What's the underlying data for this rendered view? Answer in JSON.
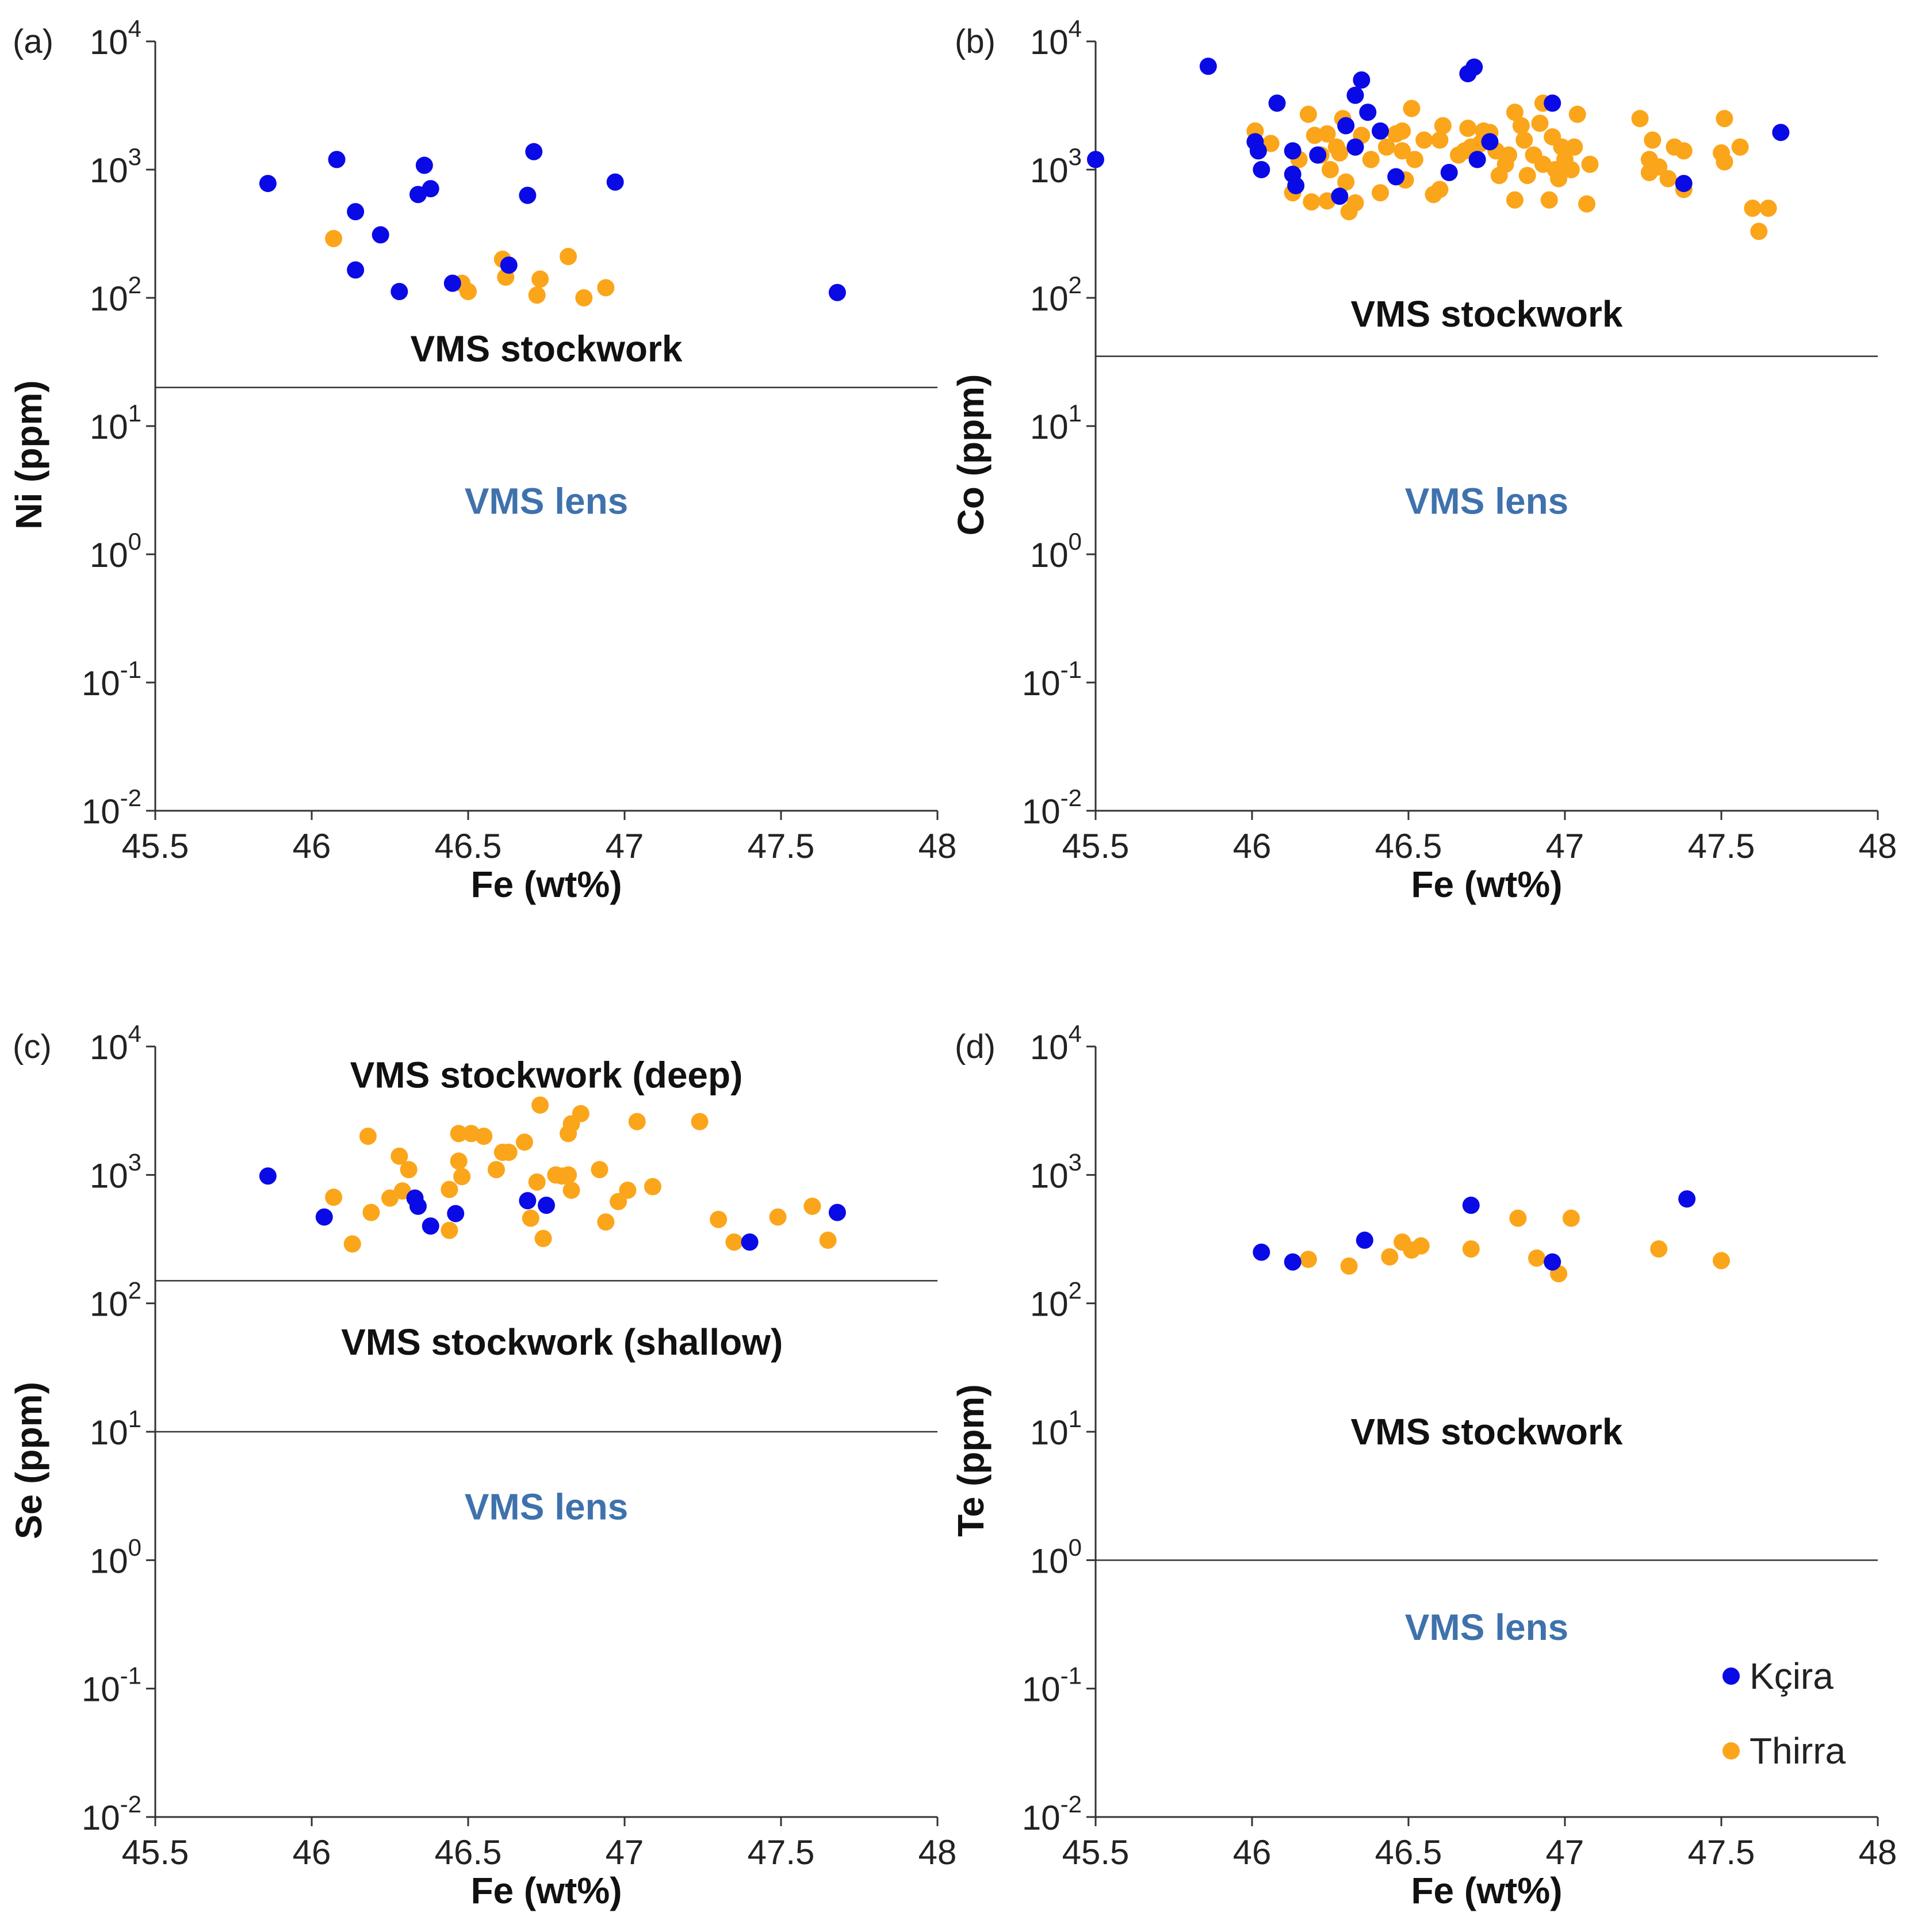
{
  "colors": {
    "kcira": "#0a0ae6",
    "thirra": "#fba51a",
    "lens_text": "#3f72ac",
    "axis": "#333333"
  },
  "legend": {
    "items": [
      {
        "label": "Kçira",
        "color": "#0a0ae6"
      },
      {
        "label": "Thirra",
        "color": "#fba51a"
      }
    ]
  },
  "chart_data": [
    {
      "type": "scatter",
      "panel_label": "(a)",
      "xlabel": "Fe (wt%)",
      "ylabel": "Ni (ppm)",
      "xlim": [
        45.5,
        48
      ],
      "ylim": [
        0.01,
        10000
      ],
      "yscale": "log",
      "x_ticks": [
        "45.5",
        "46",
        "46.5",
        "47",
        "47.5",
        "48"
      ],
      "y_ticks": [
        {
          "base": "10",
          "exp": "-2"
        },
        {
          "base": "10",
          "exp": "-1"
        },
        {
          "base": "10",
          "exp": "0"
        },
        {
          "base": "10",
          "exp": "1"
        },
        {
          "base": "10",
          "exp": "2"
        },
        {
          "base": "10",
          "exp": "3"
        },
        {
          "base": "10",
          "exp": "4"
        }
      ],
      "threshold_lines": [
        20
      ],
      "region_labels": [
        {
          "text": "VMS stockwork",
          "x": 46.75,
          "y": 40,
          "style": "dark"
        },
        {
          "text": "VMS lens",
          "x": 46.75,
          "y": 2.6,
          "style": "blue"
        }
      ],
      "series": [
        {
          "name": "Kçira",
          "points": [
            [
              45.86,
              780
            ],
            [
              46.08,
              1200
            ],
            [
              46.14,
              470
            ],
            [
              46.14,
              165
            ],
            [
              46.22,
              310
            ],
            [
              46.28,
              112
            ],
            [
              46.34,
              640
            ],
            [
              46.36,
              1080
            ],
            [
              46.38,
              710
            ],
            [
              46.45,
              130
            ],
            [
              46.63,
              180
            ],
            [
              46.69,
              630
            ],
            [
              46.71,
              1380
            ],
            [
              46.97,
              800
            ],
            [
              47.68,
              110
            ]
          ]
        },
        {
          "name": "Thirra",
          "points": [
            [
              46.07,
              290
            ],
            [
              46.48,
              130
            ],
            [
              46.5,
              112
            ],
            [
              46.61,
              200
            ],
            [
              46.62,
              145
            ],
            [
              46.72,
              105
            ],
            [
              46.73,
              140
            ],
            [
              46.82,
              210
            ],
            [
              46.87,
              100
            ],
            [
              46.94,
              120
            ]
          ]
        }
      ]
    },
    {
      "type": "scatter",
      "panel_label": "(b)",
      "xlabel": "Fe (wt%)",
      "ylabel": "Co (ppm)",
      "xlim": [
        45.5,
        48
      ],
      "ylim": [
        0.01,
        10000
      ],
      "yscale": "log",
      "x_ticks": [
        "45.5",
        "46",
        "46.5",
        "47",
        "47.5",
        "48"
      ],
      "y_ticks": [
        {
          "base": "10",
          "exp": "-2"
        },
        {
          "base": "10",
          "exp": "-1"
        },
        {
          "base": "10",
          "exp": "0"
        },
        {
          "base": "10",
          "exp": "1"
        },
        {
          "base": "10",
          "exp": "2"
        },
        {
          "base": "10",
          "exp": "3"
        },
        {
          "base": "10",
          "exp": "4"
        }
      ],
      "threshold_lines": [
        35
      ],
      "region_labels": [
        {
          "text": "VMS stockwork",
          "x": 46.75,
          "y": 75,
          "style": "dark"
        },
        {
          "text": "VMS lens",
          "x": 46.75,
          "y": 2.6,
          "style": "blue"
        }
      ],
      "series": [
        {
          "name": "Kçira",
          "points": [
            [
              45.5,
              1200
            ],
            [
              45.86,
              6400
            ],
            [
              46.01,
              1650
            ],
            [
              46.02,
              1400
            ],
            [
              46.03,
              1000
            ],
            [
              46.08,
              3300
            ],
            [
              46.13,
              1400
            ],
            [
              46.13,
              920
            ],
            [
              46.14,
              750
            ],
            [
              46.21,
              1300
            ],
            [
              46.28,
              620
            ],
            [
              46.3,
              2200
            ],
            [
              46.33,
              3800
            ],
            [
              46.33,
              1500
            ],
            [
              46.35,
              5000
            ],
            [
              46.37,
              2800
            ],
            [
              46.41,
              2000
            ],
            [
              46.46,
              880
            ],
            [
              46.63,
              950
            ],
            [
              46.69,
              5600
            ],
            [
              46.71,
              6300
            ],
            [
              46.72,
              1200
            ],
            [
              46.76,
              1650
            ],
            [
              46.96,
              3300
            ],
            [
              47.38,
              780
            ],
            [
              47.69,
              1950
            ]
          ]
        },
        {
          "name": "Thirra",
          "points": [
            [
              46.01,
              2000
            ],
            [
              46.06,
              1600
            ],
            [
              46.13,
              660
            ],
            [
              46.15,
              1200
            ],
            [
              46.18,
              2700
            ],
            [
              46.19,
              560
            ],
            [
              46.2,
              1850
            ],
            [
              46.22,
              1300
            ],
            [
              46.24,
              1900
            ],
            [
              46.24,
              570
            ],
            [
              46.25,
              1000
            ],
            [
              46.27,
              1500
            ],
            [
              46.28,
              1350
            ],
            [
              46.29,
              2500
            ],
            [
              46.3,
              800
            ],
            [
              46.31,
              470
            ],
            [
              46.33,
              550
            ],
            [
              46.35,
              1850
            ],
            [
              46.38,
              1200
            ],
            [
              46.41,
              660
            ],
            [
              46.43,
              1500
            ],
            [
              46.46,
              1900
            ],
            [
              46.48,
              2000
            ],
            [
              46.48,
              1400
            ],
            [
              46.49,
              830
            ],
            [
              46.51,
              3000
            ],
            [
              46.52,
              1200
            ],
            [
              46.55,
              1700
            ],
            [
              46.58,
              640
            ],
            [
              46.6,
              700
            ],
            [
              46.6,
              1700
            ],
            [
              46.61,
              2200
            ],
            [
              46.66,
              1300
            ],
            [
              46.68,
              1400
            ],
            [
              46.69,
              2100
            ],
            [
              46.7,
              1500
            ],
            [
              46.73,
              1600
            ],
            [
              46.74,
              2000
            ],
            [
              46.76,
              1950
            ],
            [
              46.78,
              1400
            ],
            [
              46.79,
              900
            ],
            [
              46.81,
              1100
            ],
            [
              46.82,
              1300
            ],
            [
              46.84,
              2800
            ],
            [
              46.84,
              580
            ],
            [
              46.86,
              2200
            ],
            [
              46.87,
              1700
            ],
            [
              46.88,
              900
            ],
            [
              46.9,
              1300
            ],
            [
              46.92,
              2300
            ],
            [
              46.93,
              1100
            ],
            [
              46.93,
              3300
            ],
            [
              46.95,
              580
            ],
            [
              46.96,
              1800
            ],
            [
              46.97,
              1000
            ],
            [
              46.98,
              850
            ],
            [
              46.99,
              1500
            ],
            [
              47.0,
              1200
            ],
            [
              47.02,
              1000
            ],
            [
              47.03,
              1500
            ],
            [
              47.04,
              2700
            ],
            [
              47.07,
              540
            ],
            [
              47.08,
              1100
            ],
            [
              47.24,
              2500
            ],
            [
              47.27,
              1200
            ],
            [
              47.27,
              950
            ],
            [
              47.28,
              1700
            ],
            [
              47.3,
              1050
            ],
            [
              47.33,
              850
            ],
            [
              47.35,
              1500
            ],
            [
              47.38,
              1400
            ],
            [
              47.38,
              700
            ],
            [
              47.5,
              1350
            ],
            [
              47.51,
              2500
            ],
            [
              47.51,
              1150
            ],
            [
              47.56,
              1500
            ],
            [
              47.6,
              500
            ],
            [
              47.62,
              330
            ],
            [
              47.65,
              500
            ]
          ]
        }
      ]
    },
    {
      "type": "scatter",
      "panel_label": "(c)",
      "xlabel": "Fe (wt%)",
      "ylabel": "Se (ppm)",
      "xlim": [
        45.5,
        48
      ],
      "ylim": [
        0.01,
        10000
      ],
      "yscale": "log",
      "x_ticks": [
        "45.5",
        "46",
        "46.5",
        "47",
        "47.5",
        "48"
      ],
      "y_ticks": [
        {
          "base": "10",
          "exp": "-2"
        },
        {
          "base": "10",
          "exp": "-1"
        },
        {
          "base": "10",
          "exp": "0"
        },
        {
          "base": "10",
          "exp": "1"
        },
        {
          "base": "10",
          "exp": "2"
        },
        {
          "base": "10",
          "exp": "3"
        },
        {
          "base": "10",
          "exp": "4"
        }
      ],
      "threshold_lines": [
        150,
        10
      ],
      "region_labels": [
        {
          "text": "VMS stockwork (deep)",
          "x": 46.75,
          "y": 6000,
          "style": "dark"
        },
        {
          "text": "VMS stockwork (shallow)",
          "x": 46.8,
          "y": 50,
          "style": "dark"
        },
        {
          "text": "VMS lens",
          "x": 46.75,
          "y": 2.6,
          "style": "blue"
        }
      ],
      "series": [
        {
          "name": "Kçira",
          "points": [
            [
              45.86,
              980
            ],
            [
              46.04,
              470
            ],
            [
              46.33,
              660
            ],
            [
              46.34,
              570
            ],
            [
              46.38,
              400
            ],
            [
              46.46,
              500
            ],
            [
              46.69,
              630
            ],
            [
              46.75,
              580
            ],
            [
              47.4,
              300
            ],
            [
              47.68,
              510
            ]
          ]
        },
        {
          "name": "Thirra",
          "points": [
            [
              46.07,
              670
            ],
            [
              46.13,
              290
            ],
            [
              46.18,
              2000
            ],
            [
              46.19,
              510
            ],
            [
              46.25,
              660
            ],
            [
              46.28,
              1400
            ],
            [
              46.29,
              750
            ],
            [
              46.31,
              1100
            ],
            [
              46.44,
              770
            ],
            [
              46.44,
              370
            ],
            [
              46.47,
              2100
            ],
            [
              46.47,
              1280
            ],
            [
              46.48,
              970
            ],
            [
              46.51,
              2100
            ],
            [
              46.55,
              2000
            ],
            [
              46.59,
              1100
            ],
            [
              46.61,
              1500
            ],
            [
              46.63,
              1500
            ],
            [
              46.68,
              1800
            ],
            [
              46.7,
              460
            ],
            [
              46.72,
              880
            ],
            [
              46.73,
              3500
            ],
            [
              46.74,
              320
            ],
            [
              46.78,
              1000
            ],
            [
              46.8,
              980
            ],
            [
              46.82,
              1000
            ],
            [
              46.82,
              2100
            ],
            [
              46.83,
              2500
            ],
            [
              46.83,
              760
            ],
            [
              46.86,
              3000
            ],
            [
              46.92,
              1100
            ],
            [
              46.94,
              430
            ],
            [
              46.98,
              620
            ],
            [
              47.01,
              760
            ],
            [
              47.04,
              2600
            ],
            [
              47.09,
              810
            ],
            [
              47.24,
              2600
            ],
            [
              47.3,
              450
            ],
            [
              47.35,
              300
            ],
            [
              47.49,
              470
            ],
            [
              47.6,
              570
            ],
            [
              47.65,
              310
            ]
          ]
        }
      ]
    },
    {
      "type": "scatter",
      "panel_label": "(d)",
      "xlabel": "Fe (wt%)",
      "ylabel": "Te (ppm)",
      "xlim": [
        45.5,
        48
      ],
      "ylim": [
        0.01,
        10000
      ],
      "yscale": "log",
      "x_ticks": [
        "45.5",
        "46",
        "46.5",
        "47",
        "47.5",
        "48"
      ],
      "y_ticks": [
        {
          "base": "10",
          "exp": "-2"
        },
        {
          "base": "10",
          "exp": "-1"
        },
        {
          "base": "10",
          "exp": "0"
        },
        {
          "base": "10",
          "exp": "1"
        },
        {
          "base": "10",
          "exp": "2"
        },
        {
          "base": "10",
          "exp": "3"
        },
        {
          "base": "10",
          "exp": "4"
        }
      ],
      "threshold_lines": [
        1
      ],
      "region_labels": [
        {
          "text": "VMS stockwork",
          "x": 46.75,
          "y": 10,
          "style": "dark"
        },
        {
          "text": "VMS lens",
          "x": 46.75,
          "y": 0.3,
          "style": "blue"
        }
      ],
      "series": [
        {
          "name": "Kçira",
          "points": [
            [
              46.03,
              250
            ],
            [
              46.13,
              210
            ],
            [
              46.36,
              310
            ],
            [
              46.7,
              580
            ],
            [
              46.96,
              210
            ],
            [
              47.39,
              650
            ]
          ]
        },
        {
          "name": "Thirra",
          "points": [
            [
              46.18,
              220
            ],
            [
              46.31,
              195
            ],
            [
              46.44,
              230
            ],
            [
              46.48,
              300
            ],
            [
              46.51,
              260
            ],
            [
              46.54,
              280
            ],
            [
              46.7,
              265
            ],
            [
              46.85,
              460
            ],
            [
              46.91,
              225
            ],
            [
              46.98,
              170
            ],
            [
              47.02,
              460
            ],
            [
              47.3,
              265
            ],
            [
              47.5,
              215
            ]
          ]
        }
      ]
    }
  ]
}
